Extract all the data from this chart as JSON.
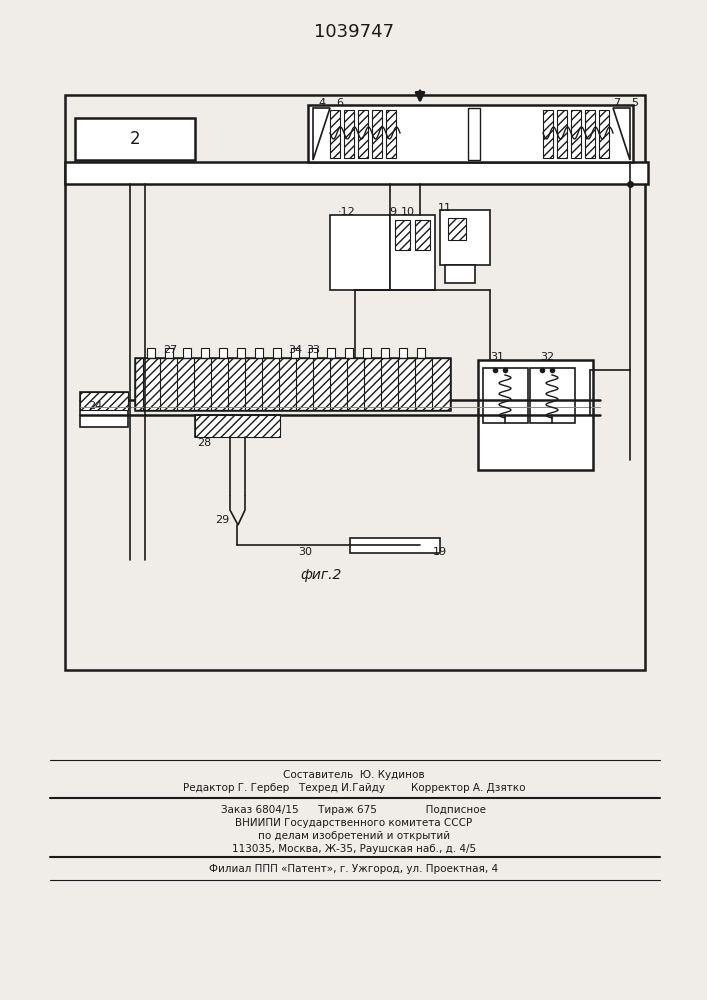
{
  "title": "1039747",
  "fig_label": "фиг.2",
  "bg_color": "#f0ede8",
  "line_color": "#1a1a1a",
  "footer_lines": [
    "Составитель  Ю. Кудинов",
    "Редактор Г. Гербер   Техред И.Гайду        Корректор А. Дзятко",
    "Заказ 6804/15      Тираж 675               Подписное",
    "ВНИИПИ Государственного комитета СССР",
    "по делам изобретений и открытий",
    "113035, Москва, Ж-35, Раушская наб., д. 4/5",
    "Филиал ППП «Патент», г. Ужгород, ул. Проектная, 4"
  ]
}
